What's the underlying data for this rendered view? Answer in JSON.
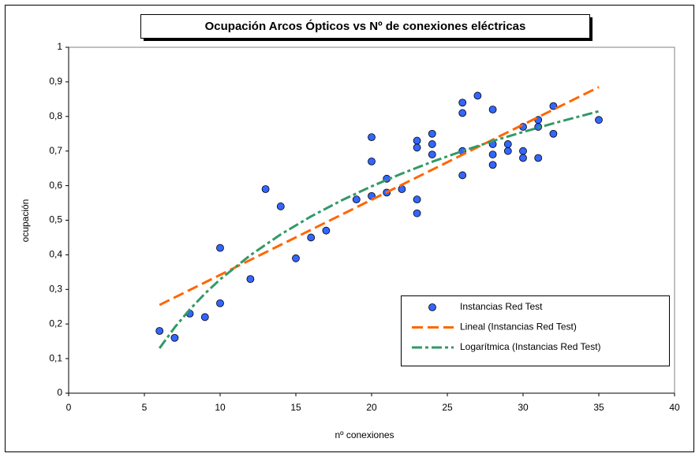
{
  "chart_data": {
    "type": "scatter",
    "title": "Ocupación Arcos Ópticos vs Nº de conexiones eléctricas",
    "xlabel": "nº conexiones",
    "ylabel": "ocupación",
    "xlim": [
      0,
      40
    ],
    "ylim": [
      0,
      1
    ],
    "xticks": [
      0,
      5,
      10,
      15,
      20,
      25,
      30,
      35,
      40
    ],
    "yticks": [
      0,
      {
        "value": 0.1,
        "label": "0,1"
      },
      {
        "value": 0.2,
        "label": "0,2"
      },
      {
        "value": 0.3,
        "label": "0,3"
      },
      {
        "value": 0.4,
        "label": "0,4"
      },
      {
        "value": 0.5,
        "label": "0,5"
      },
      {
        "value": 0.6,
        "label": "0,6"
      },
      {
        "value": 0.7,
        "label": "0,7"
      },
      {
        "value": 0.8,
        "label": "0,8"
      },
      {
        "value": 0.9,
        "label": "0,9"
      },
      1
    ],
    "grid": false,
    "legend": "lower right",
    "series": [
      {
        "name": "Instancias Red Test",
        "mode": "markers",
        "color": "#3366ff",
        "x": [
          6,
          7,
          8,
          9,
          10,
          10,
          12,
          13,
          14,
          15,
          16,
          17,
          19,
          20,
          20,
          20,
          21,
          21,
          22,
          23,
          23,
          23,
          23,
          24,
          24,
          24,
          26,
          26,
          26,
          26,
          27,
          28,
          28,
          28,
          28,
          29,
          29,
          30,
          30,
          30,
          31,
          31,
          31,
          32,
          32,
          35
        ],
        "values": [
          0.18,
          0.16,
          0.23,
          0.22,
          0.42,
          0.26,
          0.33,
          0.59,
          0.54,
          0.39,
          0.45,
          0.47,
          0.56,
          0.74,
          0.67,
          0.57,
          0.62,
          0.58,
          0.59,
          0.73,
          0.71,
          0.56,
          0.52,
          0.75,
          0.72,
          0.69,
          0.84,
          0.81,
          0.7,
          0.63,
          0.86,
          0.82,
          0.72,
          0.69,
          0.66,
          0.72,
          0.7,
          0.77,
          0.7,
          0.68,
          0.79,
          0.77,
          0.68,
          0.83,
          0.75,
          0.79
        ]
      },
      {
        "name": "Lineal (Instancias Red Test)",
        "mode": "line",
        "color": "#ff6600",
        "x": [
          6,
          35
        ],
        "values": [
          0.255,
          0.885
        ]
      },
      {
        "name": "Logarítmica (Instancias Red Test)",
        "mode": "line",
        "color": "#339966",
        "x": [
          6,
          7,
          8,
          9,
          10,
          12,
          14,
          16,
          18,
          20,
          22,
          24,
          26,
          28,
          30,
          32,
          35
        ],
        "values": [
          0.13,
          0.19,
          0.242,
          0.288,
          0.329,
          0.399,
          0.459,
          0.511,
          0.557,
          0.598,
          0.635,
          0.669,
          0.7,
          0.729,
          0.755,
          0.78,
          0.815
        ]
      }
    ]
  }
}
